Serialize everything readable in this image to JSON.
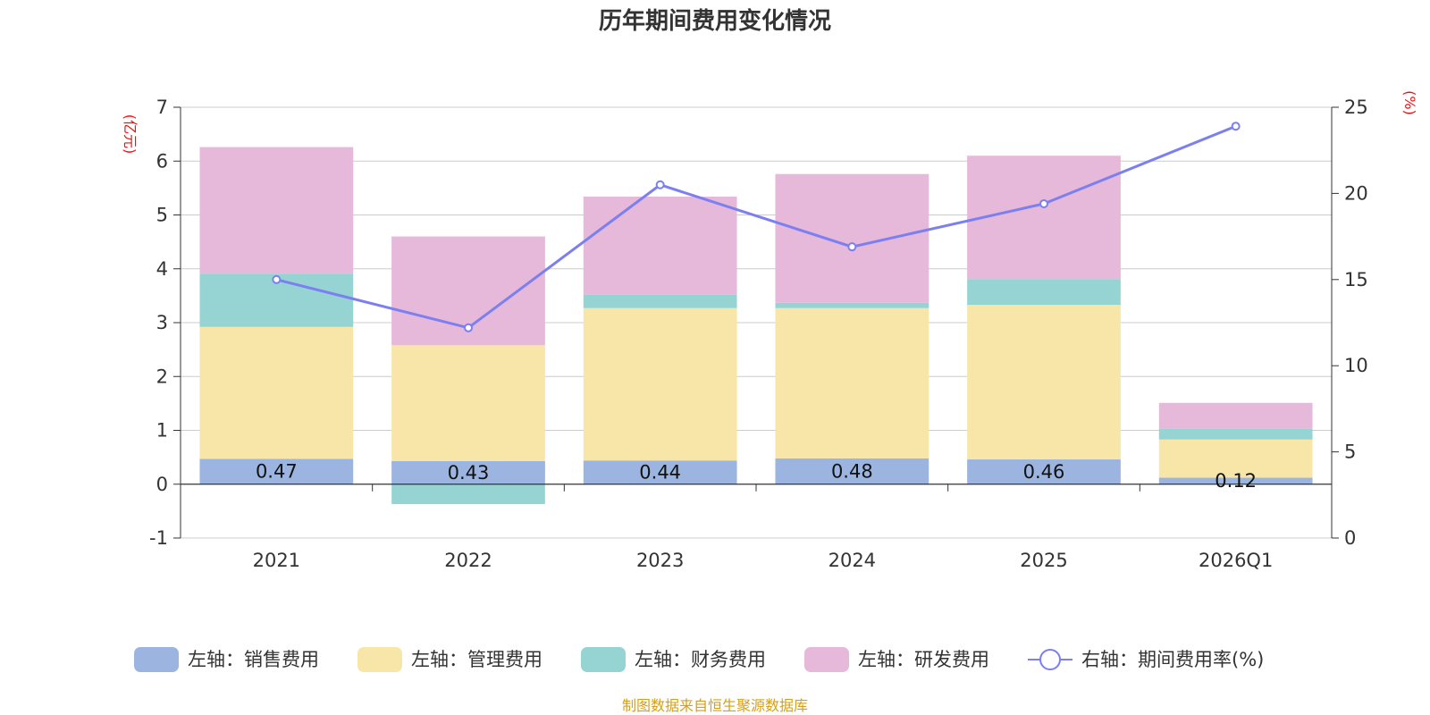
{
  "chart_data": {
    "type": "bar",
    "title": "历年期间费用变化情况",
    "categories": [
      "2021",
      "2022",
      "2023",
      "2024",
      "2025",
      "2026Q1"
    ],
    "left_axis": {
      "unit": "(亿元)",
      "ylim": [
        -1,
        7
      ],
      "ticks": [
        -1,
        0,
        1,
        2,
        3,
        4,
        5,
        6,
        7
      ]
    },
    "right_axis": {
      "unit": "(%)",
      "ylim": [
        0,
        25
      ],
      "ticks": [
        0,
        5,
        10,
        15,
        20,
        25
      ]
    },
    "series": [
      {
        "name": "左轴：销售费用",
        "axis": "left",
        "stack": true,
        "color": "#9bb5e0",
        "values": [
          0.47,
          0.43,
          0.44,
          0.48,
          0.46,
          0.12
        ],
        "labels": [
          "0.47",
          "0.43",
          "0.44",
          "0.48",
          "0.46",
          "0.12"
        ]
      },
      {
        "name": "左轴：管理费用",
        "axis": "left",
        "stack": true,
        "color": "#f8e6a8",
        "values": [
          2.45,
          2.15,
          2.83,
          2.79,
          2.87,
          0.71
        ]
      },
      {
        "name": "左轴：财务费用",
        "axis": "left",
        "stack": true,
        "color": "#96d4d4",
        "values": [
          0.99,
          -0.37,
          0.25,
          0.1,
          0.48,
          0.2
        ]
      },
      {
        "name": "左轴：研发费用",
        "axis": "left",
        "stack": true,
        "color": "#e6b8da",
        "values": [
          2.35,
          2.02,
          1.82,
          2.39,
          2.29,
          0.48
        ]
      },
      {
        "name": "右轴：期间费用率(%)",
        "axis": "right",
        "type": "line",
        "color": "#7b7ff0",
        "values": [
          15.0,
          12.2,
          20.5,
          16.9,
          19.4,
          23.9
        ]
      }
    ],
    "legend_position": "bottom",
    "grid": true
  },
  "source_text": "制图数据来自恒生聚源数据库"
}
